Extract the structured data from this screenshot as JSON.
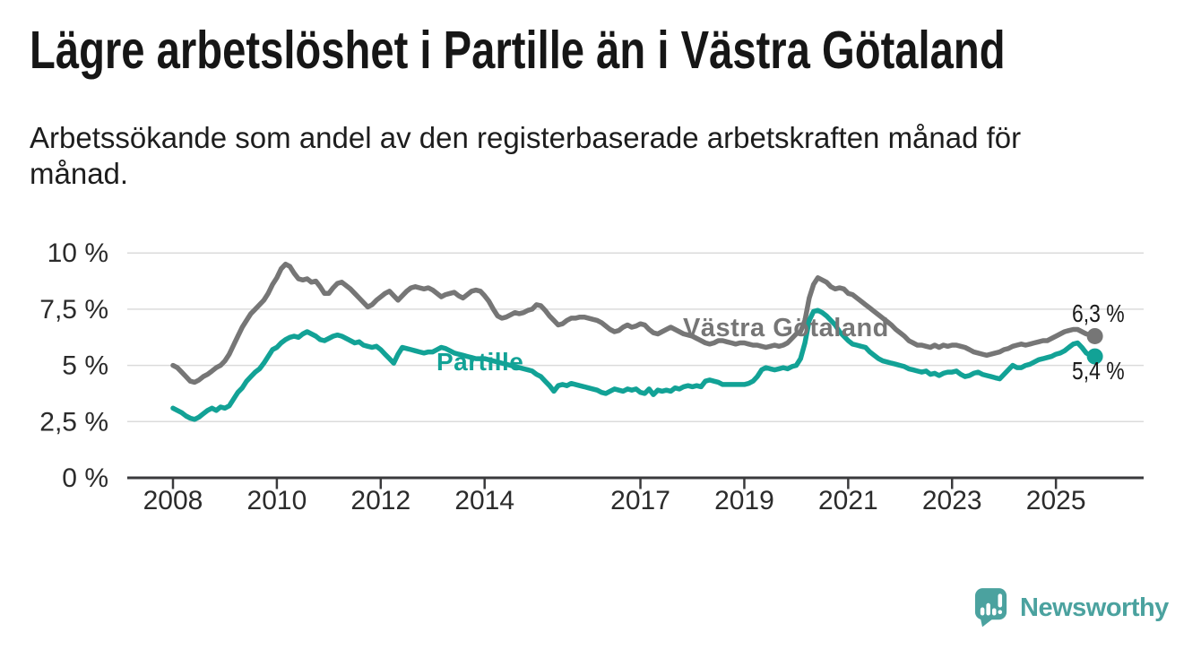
{
  "title": "Lägre arbetslöshet i Partille än i Västra Götaland",
  "subtitle": "Arbetssökande som andel av den registerbaserade arbetskraften månad för\nmånad.",
  "branding": {
    "name": "Newsworthy",
    "color": "#4BA29F",
    "icon": "speech-bubble-bar-chart"
  },
  "chart_data": {
    "type": "line",
    "unit": "%",
    "frequency": "monthly",
    "x_start": {
      "year": 2008,
      "month": 1
    },
    "x_end": {
      "year": 2025,
      "month": 10
    },
    "grid": true,
    "ylim": [
      0,
      10
    ],
    "y_ticks": [
      {
        "value": 0,
        "label": "0 %"
      },
      {
        "value": 2.5,
        "label": "2,5 %"
      },
      {
        "value": 5,
        "label": "5 %"
      },
      {
        "value": 7.5,
        "label": "7,5 %"
      },
      {
        "value": 10,
        "label": "10 %"
      }
    ],
    "x_ticks": [
      2008,
      2010,
      2012,
      2014,
      2017,
      2019,
      2021,
      2023,
      2025
    ],
    "series": [
      {
        "name": "Västra Götaland",
        "color": "#767676",
        "end_label": "6,3 %",
        "last_value": 6.3,
        "values": [
          5.0,
          4.9,
          4.7,
          4.5,
          4.3,
          4.25,
          4.35,
          4.5,
          4.6,
          4.75,
          4.9,
          5.0,
          5.2,
          5.5,
          5.9,
          6.3,
          6.7,
          7.0,
          7.3,
          7.5,
          7.7,
          7.9,
          8.2,
          8.6,
          8.9,
          9.3,
          9.5,
          9.4,
          9.1,
          8.85,
          8.8,
          8.85,
          8.7,
          8.75,
          8.5,
          8.2,
          8.2,
          8.45,
          8.65,
          8.7,
          8.55,
          8.4,
          8.2,
          8.0,
          7.8,
          7.6,
          7.7,
          7.9,
          8.05,
          8.2,
          8.3,
          8.1,
          7.9,
          8.1,
          8.3,
          8.45,
          8.5,
          8.45,
          8.4,
          8.45,
          8.35,
          8.2,
          8.05,
          8.15,
          8.2,
          8.25,
          8.1,
          8.0,
          8.15,
          8.3,
          8.35,
          8.3,
          8.1,
          7.85,
          7.5,
          7.2,
          7.1,
          7.15,
          7.25,
          7.35,
          7.3,
          7.35,
          7.45,
          7.5,
          7.7,
          7.65,
          7.45,
          7.2,
          7.0,
          6.8,
          6.85,
          7.0,
          7.1,
          7.1,
          7.15,
          7.15,
          7.1,
          7.05,
          7.0,
          6.9,
          6.75,
          6.6,
          6.5,
          6.55,
          6.7,
          6.8,
          6.7,
          6.75,
          6.85,
          6.8,
          6.6,
          6.45,
          6.4,
          6.5,
          6.6,
          6.7,
          6.6,
          6.5,
          6.4,
          6.35,
          6.3,
          6.2,
          6.1,
          6.0,
          5.95,
          6.0,
          6.1,
          6.1,
          6.05,
          6.0,
          5.95,
          6.0,
          6.0,
          5.95,
          5.9,
          5.9,
          5.85,
          5.8,
          5.85,
          5.9,
          5.85,
          5.9,
          6.0,
          6.2,
          6.4,
          6.5,
          7.0,
          8.0,
          8.6,
          8.9,
          8.8,
          8.7,
          8.5,
          8.4,
          8.45,
          8.4,
          8.2,
          8.15,
          8.0,
          7.85,
          7.7,
          7.55,
          7.4,
          7.25,
          7.1,
          6.95,
          6.8,
          6.6,
          6.45,
          6.3,
          6.1,
          6.0,
          5.9,
          5.9,
          5.85,
          5.8,
          5.9,
          5.8,
          5.9,
          5.85,
          5.9,
          5.9,
          5.85,
          5.8,
          5.7,
          5.6,
          5.55,
          5.5,
          5.45,
          5.5,
          5.55,
          5.6,
          5.7,
          5.75,
          5.85,
          5.9,
          5.95,
          5.9,
          5.95,
          6.0,
          6.05,
          6.1,
          6.1,
          6.2,
          6.3,
          6.4,
          6.5,
          6.55,
          6.6,
          6.6,
          6.5,
          6.4,
          6.35,
          6.3
        ]
      },
      {
        "name": "Partille",
        "color": "#12A296",
        "end_label": "5,4 %",
        "last_value": 5.4,
        "values": [
          3.1,
          3.0,
          2.9,
          2.75,
          2.65,
          2.6,
          2.7,
          2.85,
          3.0,
          3.1,
          3.0,
          3.15,
          3.1,
          3.2,
          3.5,
          3.8,
          4.0,
          4.3,
          4.5,
          4.7,
          4.85,
          5.1,
          5.4,
          5.7,
          5.8,
          6.0,
          6.15,
          6.25,
          6.3,
          6.25,
          6.4,
          6.5,
          6.4,
          6.3,
          6.15,
          6.1,
          6.2,
          6.3,
          6.35,
          6.3,
          6.2,
          6.1,
          6.0,
          6.05,
          5.9,
          5.85,
          5.8,
          5.85,
          5.7,
          5.5,
          5.3,
          5.1,
          5.5,
          5.8,
          5.75,
          5.7,
          5.65,
          5.6,
          5.55,
          5.6,
          5.6,
          5.7,
          5.8,
          5.75,
          5.65,
          5.55,
          5.5,
          5.45,
          5.4,
          5.35,
          5.3,
          5.3,
          5.3,
          5.25,
          5.2,
          5.15,
          5.1,
          5.05,
          5.0,
          4.95,
          4.9,
          4.85,
          4.8,
          4.75,
          4.6,
          4.5,
          4.3,
          4.1,
          3.85,
          4.1,
          4.15,
          4.1,
          4.2,
          4.15,
          4.1,
          4.05,
          4.0,
          3.95,
          3.9,
          3.8,
          3.75,
          3.85,
          3.95,
          3.9,
          3.85,
          3.95,
          3.9,
          3.95,
          3.8,
          3.75,
          3.95,
          3.7,
          3.9,
          3.85,
          3.9,
          3.85,
          4.0,
          3.95,
          4.05,
          4.1,
          4.05,
          4.1,
          4.05,
          4.3,
          4.35,
          4.3,
          4.25,
          4.15,
          4.15,
          4.15,
          4.15,
          4.15,
          4.15,
          4.2,
          4.3,
          4.5,
          4.8,
          4.9,
          4.85,
          4.8,
          4.85,
          4.9,
          4.85,
          4.95,
          5.0,
          5.3,
          6.0,
          7.0,
          7.4,
          7.45,
          7.35,
          7.2,
          7.0,
          6.8,
          6.5,
          6.3,
          6.1,
          5.95,
          5.9,
          5.85,
          5.8,
          5.6,
          5.45,
          5.3,
          5.2,
          5.15,
          5.1,
          5.05,
          5.0,
          4.95,
          4.85,
          4.8,
          4.75,
          4.7,
          4.75,
          4.6,
          4.65,
          4.55,
          4.65,
          4.7,
          4.7,
          4.75,
          4.6,
          4.5,
          4.55,
          4.65,
          4.7,
          4.6,
          4.55,
          4.5,
          4.45,
          4.4,
          4.6,
          4.8,
          5.0,
          4.9,
          4.9,
          5.0,
          5.05,
          5.15,
          5.25,
          5.3,
          5.35,
          5.4,
          5.5,
          5.55,
          5.65,
          5.8,
          5.95,
          6.0,
          5.8,
          5.55,
          5.45,
          5.4
        ]
      }
    ]
  }
}
